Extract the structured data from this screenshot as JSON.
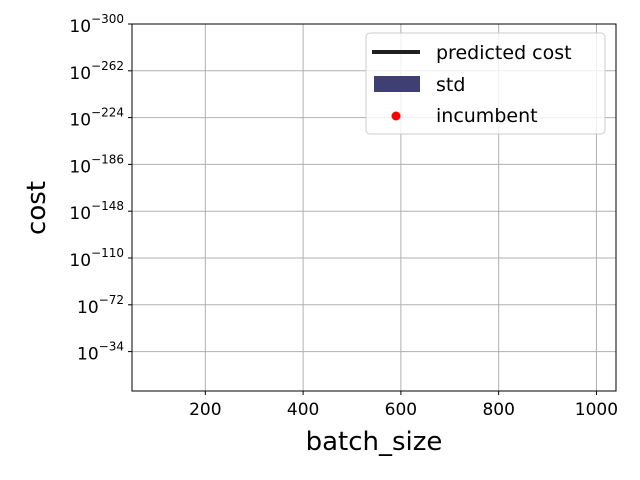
{
  "chart_data": {
    "type": "line",
    "xlabel": "batch_size",
    "ylabel": "cost",
    "yscale": "log",
    "xlim": [
      50,
      1040
    ],
    "x_ticks": [
      200,
      400,
      600,
      800,
      1000
    ],
    "y_ticks": [
      {
        "base": "10",
        "exp": "−300"
      },
      {
        "base": "10",
        "exp": "−262"
      },
      {
        "base": "10",
        "exp": "−224"
      },
      {
        "base": "10",
        "exp": "−186"
      },
      {
        "base": "10",
        "exp": "−148"
      },
      {
        "base": "10",
        "exp": "−110"
      },
      {
        "base": "10",
        "exp": "−72"
      },
      {
        "base": "10",
        "exp": "−34"
      }
    ],
    "grid": true,
    "legend_position": "top-right",
    "legend": [
      {
        "label": "predicted cost",
        "kind": "line",
        "color": "#1f1f1f"
      },
      {
        "label": "std",
        "kind": "patch",
        "color": "#3f3f74"
      },
      {
        "label": "incumbent",
        "kind": "marker",
        "color": "#ff0000"
      }
    ],
    "series": []
  }
}
